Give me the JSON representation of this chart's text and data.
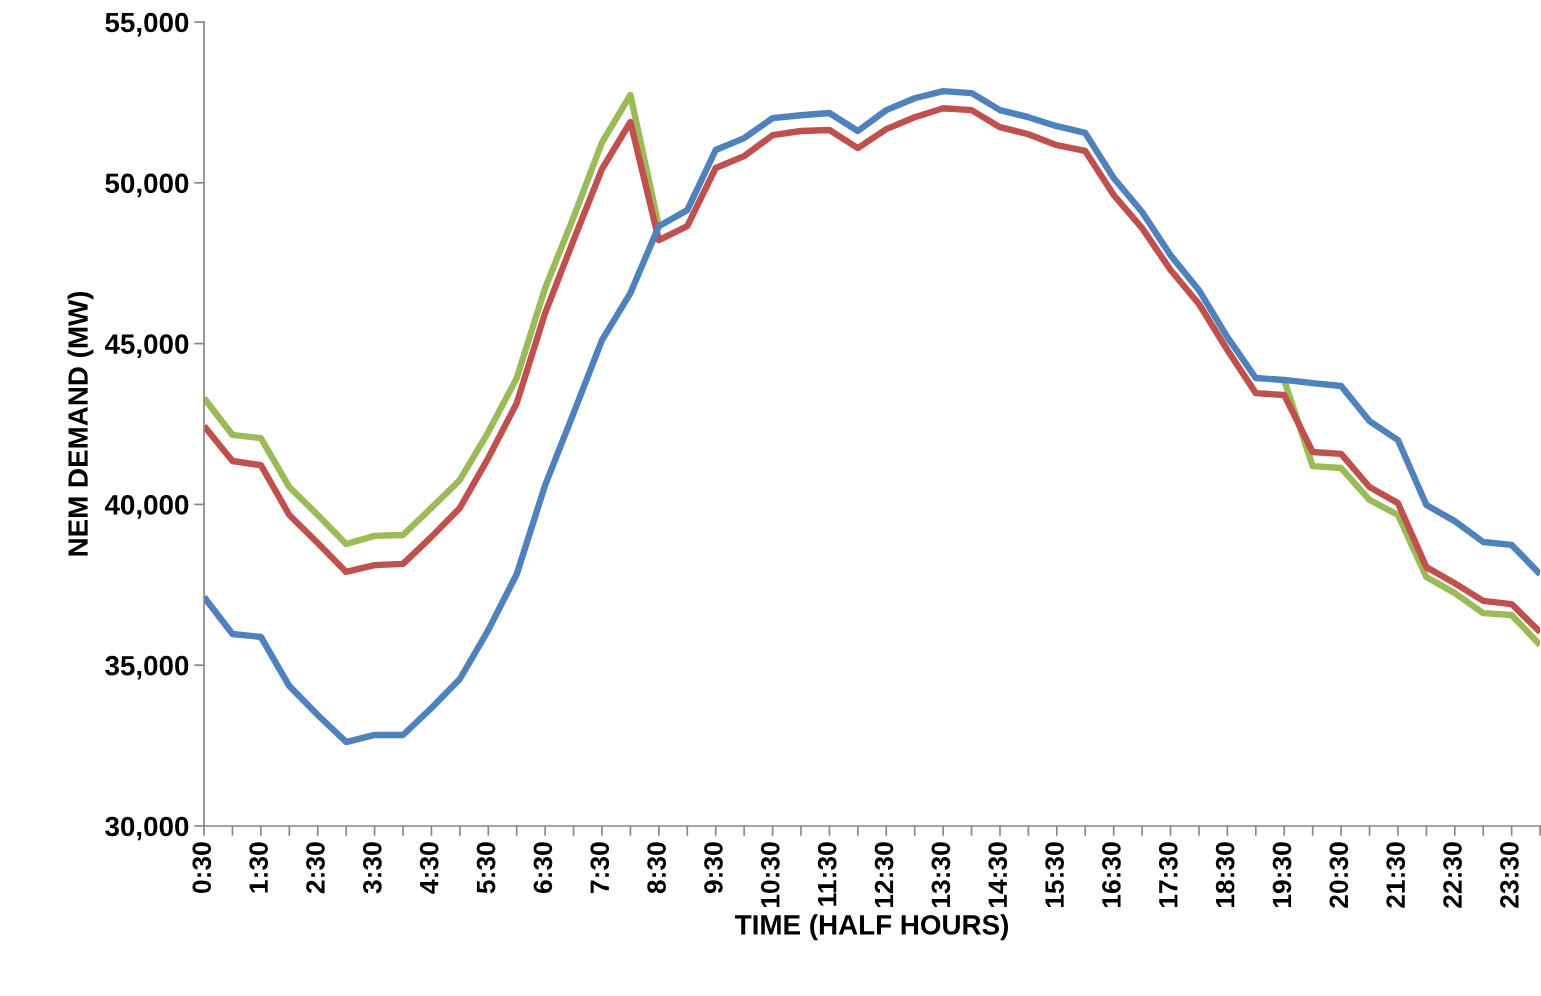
{
  "chart_data": {
    "type": "line",
    "xlabel": "TIME (HALF HOURS)",
    "ylabel": "NEM DEMAND (MW)",
    "categories": [
      "0:30",
      null,
      "1:30",
      null,
      "2:30",
      null,
      "3:30",
      null,
      "4:30",
      null,
      "5:30",
      null,
      "6:30",
      null,
      "7:30",
      null,
      "8:30",
      null,
      "9:30",
      null,
      "10:30",
      null,
      "11:30",
      null,
      "12:30",
      null,
      "13:30",
      null,
      "14:30",
      null,
      "15:30",
      null,
      "16:30",
      null,
      "17:30",
      null,
      "18:30",
      null,
      "19:30",
      null,
      "20:30",
      null,
      "21:30",
      null,
      "22:30",
      null,
      "23:30",
      null
    ],
    "series": [
      {
        "color": "#9bbb59",
        "values": [
          43310,
          42160,
          42060,
          40540,
          39670,
          38770,
          39020,
          39050,
          39890,
          40760,
          42250,
          43930,
          46730,
          48930,
          51260,
          52730,
          48650,
          null,
          null,
          null,
          null,
          null,
          null,
          null,
          null,
          null,
          null,
          null,
          null,
          null,
          null,
          null,
          null,
          null,
          null,
          null,
          null,
          null,
          43870,
          41190,
          41130,
          40140,
          39670,
          37740,
          37240,
          36620,
          36560,
          35630
        ]
      },
      {
        "color": "#c0504d",
        "values": [
          42440,
          41350,
          41220,
          39670,
          38800,
          37900,
          38110,
          38150,
          38990,
          39890,
          41440,
          43150,
          45950,
          48220,
          50430,
          51890,
          48220,
          48650,
          50460,
          50830,
          51480,
          51610,
          51640,
          51080,
          51670,
          52040,
          52320,
          52260,
          51730,
          51510,
          51170,
          50990,
          49620,
          48590,
          47290,
          46230,
          44800,
          43460,
          43400,
          41630,
          41570,
          40540,
          40040,
          38050,
          37550,
          37000,
          36900,
          36030
        ]
      },
      {
        "color": "#4f81bd",
        "values": [
          37120,
          35970,
          35880,
          34350,
          33450,
          32610,
          32830,
          32830,
          33670,
          34570,
          36090,
          37830,
          40600,
          42840,
          45110,
          46570,
          48650,
          49150,
          51020,
          51390,
          52010,
          52100,
          52170,
          51610,
          52260,
          52630,
          52850,
          52790,
          52260,
          52040,
          51760,
          51550,
          50150,
          49090,
          47750,
          46660,
          45200,
          43930,
          43870,
          43770,
          43680,
          42590,
          42000,
          39980,
          39480,
          38830,
          38740,
          37830
        ]
      }
    ],
    "ylim": [
      30000,
      55000
    ],
    "yticks": [
      {
        "value": 30000,
        "label": "30,000"
      },
      {
        "value": 35000,
        "label": "35,000"
      },
      {
        "value": 40000,
        "label": "40,000"
      },
      {
        "value": 45000,
        "label": "45,000"
      },
      {
        "value": 50000,
        "label": "50,000"
      },
      {
        "value": 55000,
        "label": "55,000"
      }
    ],
    "grid": false,
    "marker": "none",
    "line_style": "solid"
  }
}
